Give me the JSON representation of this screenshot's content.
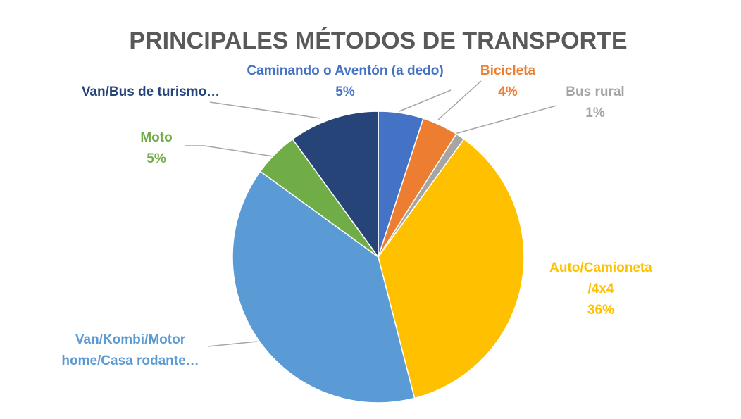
{
  "chart_data": {
    "type": "pie",
    "title": "PRINCIPALES MÉTODOS DE TRANSPORTE",
    "categories": [
      "Caminando o Aventón (a dedo)",
      "Bicicleta",
      "Bus rural",
      "Auto/Camioneta\n/4x4",
      "Van/Kombi/Motor\nhome/Casa rodante…",
      "Moto",
      "Van/Bus de turismo…"
    ],
    "values": [
      5,
      4,
      1,
      36,
      39,
      5,
      10
    ],
    "value_labels": [
      "5%",
      "4%",
      "1%",
      "36%",
      null,
      "5%",
      null
    ],
    "colors": [
      "#4472c4",
      "#ed7d31",
      "#a5a5a5",
      "#ffc000",
      "#5b9bd5",
      "#70ad47",
      "#264478"
    ]
  }
}
